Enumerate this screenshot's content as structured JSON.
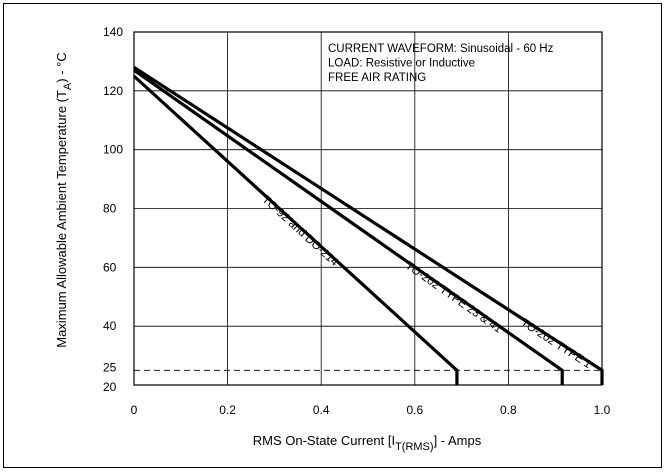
{
  "chart_data": {
    "type": "line",
    "title": "",
    "xlabel": "RMS On-State Current [I",
    "xlabel_sub": "T(RMS)",
    "xlabel_suffix": "] - Amps",
    "ylabel": "Maximum Allowable Ambient Temperature (T",
    "ylabel_sub": "A",
    "ylabel_suffix": ") - °C",
    "xlim": [
      0,
      1.0
    ],
    "ylim": [
      20,
      140
    ],
    "xticks": [
      0,
      0.2,
      0.4,
      0.6,
      0.8,
      1.0
    ],
    "xtick_labels": [
      "0",
      "0.2",
      "0.4",
      "0.6",
      "0.8",
      "1.0"
    ],
    "yticks": [
      20,
      25,
      40,
      60,
      80,
      100,
      120,
      140
    ],
    "ytick_labels": [
      "20",
      "25",
      "40",
      "60",
      "80",
      "100",
      "120",
      "140"
    ],
    "grid": true,
    "reference_line": {
      "y": 25,
      "style": "dashed"
    },
    "annotations": [
      "CURRENT WAVEFORM: Sinusoidal - 60 Hz",
      "LOAD: Resistive or Inductive",
      "FREE AIR RATING"
    ],
    "series": [
      {
        "name": "TO-92 and DO-214",
        "x": [
          0,
          0.69,
          0.69
        ],
        "y": [
          125,
          25,
          20
        ]
      },
      {
        "name": "TO-202 TYPE 23 & 41",
        "x": [
          0,
          0.915,
          0.915
        ],
        "y": [
          127,
          25,
          20
        ]
      },
      {
        "name": "TO-202 TYPE 1",
        "x": [
          0,
          1.0,
          1.0
        ],
        "y": [
          128,
          25,
          20
        ]
      }
    ]
  }
}
